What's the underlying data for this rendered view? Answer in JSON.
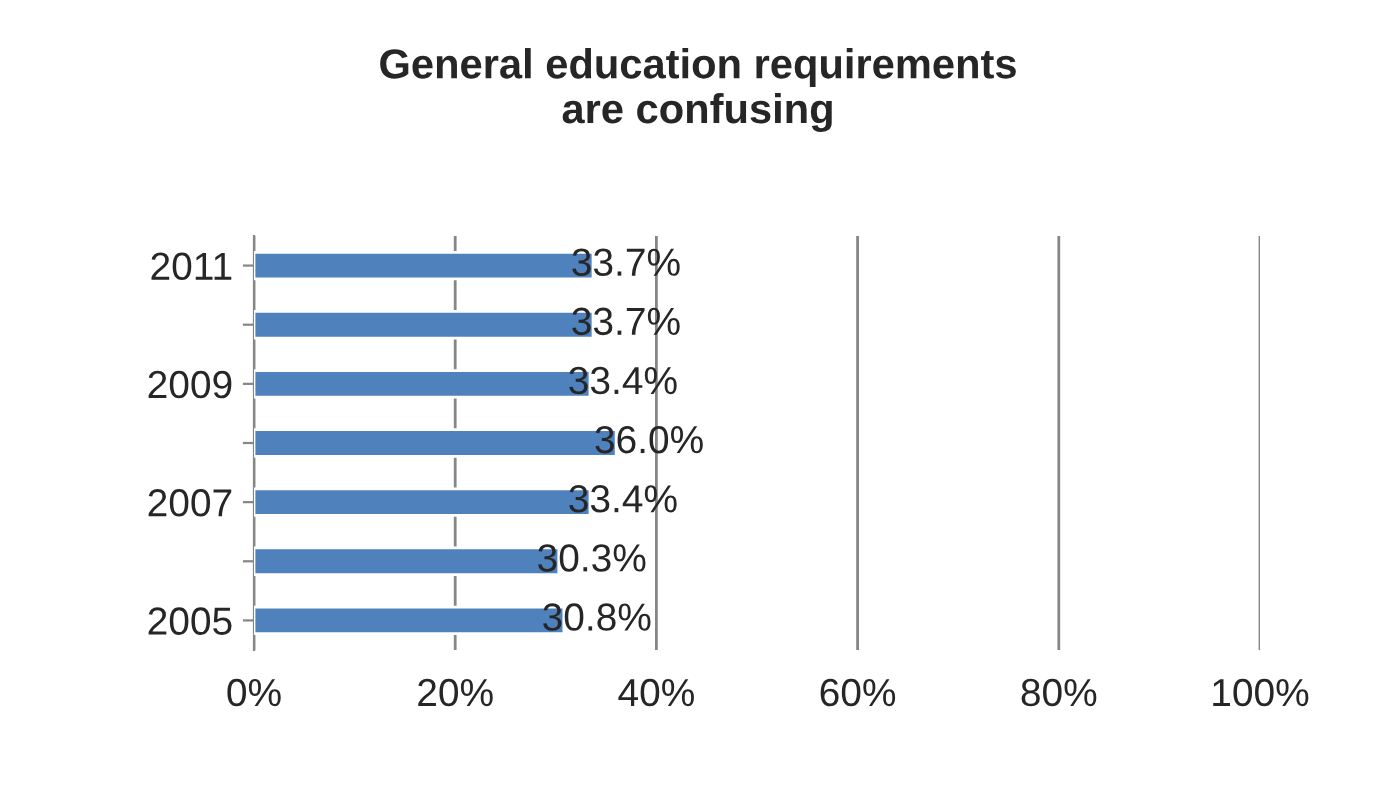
{
  "chart_data": {
    "type": "bar",
    "orientation": "horizontal",
    "title": "General education requirements\nare confusing",
    "categories": [
      "2011",
      null,
      "2009",
      null,
      "2007",
      null,
      "2005"
    ],
    "values": [
      33.7,
      33.7,
      33.4,
      36.0,
      33.4,
      30.3,
      30.8
    ],
    "value_labels": [
      "33.7%",
      "33.7%",
      "33.4%",
      "36.0%",
      "33.4%",
      "30.3%",
      "30.8%"
    ],
    "color": "#4f81bd",
    "xlim": [
      0,
      100
    ],
    "xticks": [
      {
        "value": 0,
        "label": "0%"
      },
      {
        "value": 20,
        "label": "20%"
      },
      {
        "value": 40,
        "label": "40%"
      },
      {
        "value": 60,
        "label": "60%"
      },
      {
        "value": 80,
        "label": "80%"
      },
      {
        "value": 100,
        "label": "100%"
      }
    ],
    "grid": "x",
    "legend": false
  }
}
